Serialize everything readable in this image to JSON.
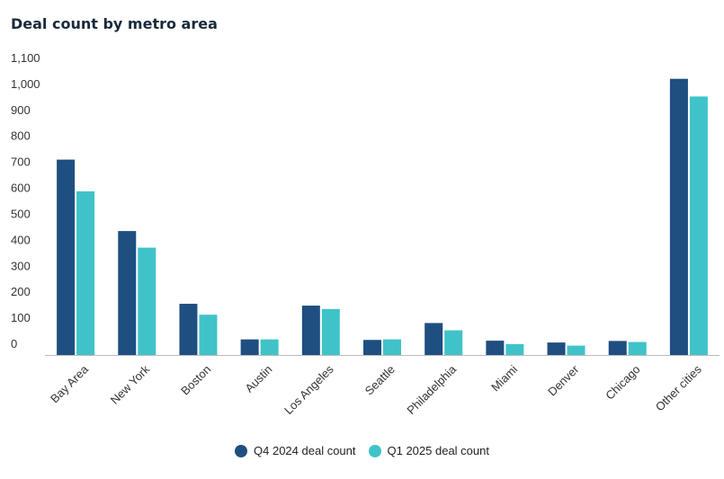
{
  "chart_data": {
    "type": "bar",
    "title": "Deal count by metro area",
    "xlabel": "",
    "ylabel": "",
    "ylim": [
      0,
      1100
    ],
    "yticks": [
      0,
      100,
      200,
      300,
      400,
      500,
      600,
      700,
      800,
      900,
      1000,
      1100
    ],
    "ytick_labels": [
      "0",
      "100",
      "200",
      "300",
      "400",
      "500",
      "600",
      "700",
      "800",
      "900",
      "1,000",
      "1,100"
    ],
    "grid": false,
    "legend_position": "bottom-center",
    "categories": [
      "Bay Area",
      "New York",
      "Boston",
      "Austin",
      "Los Angeles",
      "Seattle",
      "Philadelphia",
      "Miami",
      "Denver",
      "Chicago",
      "Other cities"
    ],
    "series": [
      {
        "name": "Q4 2024 deal count",
        "color": "#1f4e80",
        "values": [
          752,
          477,
          197,
          60,
          190,
          58,
          123,
          55,
          48,
          54,
          1063
        ]
      },
      {
        "name": "Q1 2025 deal count",
        "color": "#3fc3c9",
        "values": [
          630,
          413,
          155,
          60,
          177,
          60,
          95,
          42,
          36,
          50,
          995
        ]
      }
    ]
  }
}
